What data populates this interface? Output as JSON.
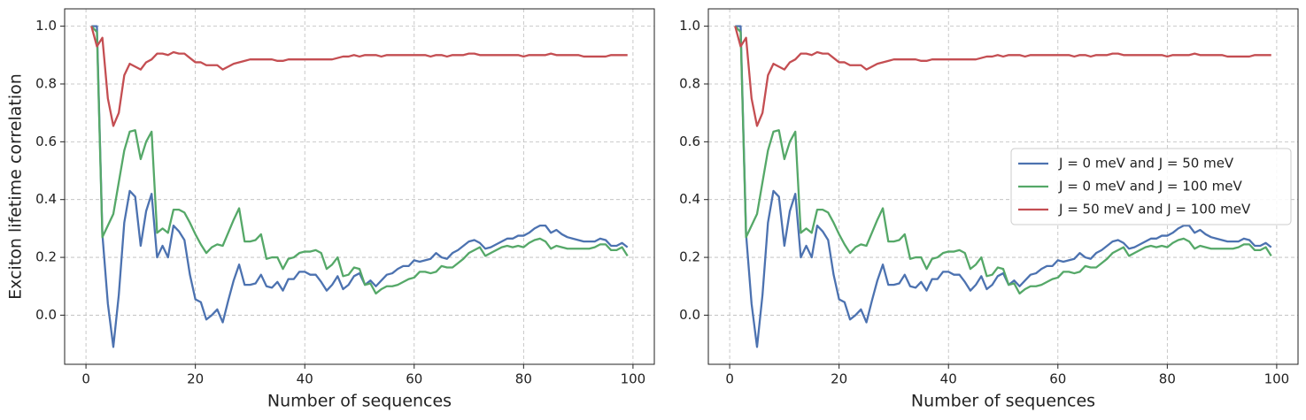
{
  "chart_data": [
    {
      "type": "line",
      "xlabel": "Number of sequences",
      "ylabel": "Exciton lifetime correlation",
      "x": [
        1,
        2,
        3,
        4,
        5,
        6,
        7,
        8,
        9,
        10,
        11,
        12,
        13,
        14,
        15,
        16,
        17,
        18,
        19,
        20,
        21,
        22,
        23,
        24,
        25,
        26,
        27,
        28,
        29,
        30,
        31,
        32,
        33,
        34,
        35,
        36,
        37,
        38,
        39,
        40,
        41,
        42,
        43,
        44,
        45,
        46,
        47,
        48,
        49,
        50,
        51,
        52,
        53,
        54,
        55,
        56,
        57,
        58,
        59,
        60,
        61,
        62,
        63,
        64,
        65,
        66,
        67,
        68,
        69,
        70,
        71,
        72,
        73,
        74,
        75,
        76,
        77,
        78,
        79,
        80,
        81,
        82,
        83,
        84,
        85,
        86,
        87,
        88,
        89,
        90,
        91,
        92,
        93,
        94,
        95,
        96,
        97,
        98,
        99
      ],
      "series": [
        {
          "color": "#4c72b0",
          "values": [
            1.0,
            1.0,
            0.28,
            0.04,
            -0.11,
            0.07,
            0.32,
            0.43,
            0.41,
            0.24,
            0.36,
            0.42,
            0.2,
            0.24,
            0.2,
            0.31,
            0.29,
            0.26,
            0.14,
            0.055,
            0.045,
            -0.015,
            0.0,
            0.02,
            -0.025,
            0.05,
            0.12,
            0.175,
            0.105,
            0.105,
            0.11,
            0.14,
            0.1,
            0.095,
            0.115,
            0.085,
            0.125,
            0.125,
            0.15,
            0.15,
            0.14,
            0.14,
            0.115,
            0.085,
            0.105,
            0.135,
            0.09,
            0.105,
            0.135,
            0.145,
            0.105,
            0.12,
            0.1,
            0.12,
            0.14,
            0.145,
            0.16,
            0.17,
            0.17,
            0.19,
            0.185,
            0.19,
            0.195,
            0.215,
            0.2,
            0.195,
            0.215,
            0.225,
            0.24,
            0.255,
            0.26,
            0.25,
            0.23,
            0.235,
            0.245,
            0.255,
            0.265,
            0.265,
            0.275,
            0.275,
            0.285,
            0.3,
            0.31,
            0.31,
            0.285,
            0.295,
            0.28,
            0.27,
            0.265,
            0.26,
            0.255,
            0.255,
            0.255,
            0.265,
            0.26,
            0.24,
            0.24,
            0.25,
            0.235
          ]
        },
        {
          "color": "#55a868",
          "values": [
            1.0,
            0.98,
            0.27,
            0.31,
            0.35,
            0.46,
            0.57,
            0.635,
            0.64,
            0.54,
            0.6,
            0.635,
            0.285,
            0.3,
            0.285,
            0.365,
            0.365,
            0.355,
            0.32,
            0.28,
            0.245,
            0.215,
            0.235,
            0.245,
            0.24,
            0.285,
            0.33,
            0.37,
            0.255,
            0.255,
            0.26,
            0.28,
            0.195,
            0.2,
            0.2,
            0.16,
            0.195,
            0.2,
            0.215,
            0.22,
            0.22,
            0.225,
            0.215,
            0.16,
            0.175,
            0.2,
            0.135,
            0.14,
            0.165,
            0.16,
            0.105,
            0.11,
            0.075,
            0.09,
            0.1,
            0.1,
            0.105,
            0.115,
            0.125,
            0.13,
            0.15,
            0.15,
            0.145,
            0.15,
            0.17,
            0.165,
            0.165,
            0.18,
            0.195,
            0.215,
            0.225,
            0.235,
            0.205,
            0.215,
            0.225,
            0.235,
            0.24,
            0.235,
            0.24,
            0.235,
            0.25,
            0.26,
            0.265,
            0.255,
            0.23,
            0.24,
            0.235,
            0.23,
            0.23,
            0.23,
            0.23,
            0.23,
            0.235,
            0.245,
            0.245,
            0.225,
            0.225,
            0.235,
            0.205
          ]
        },
        {
          "color": "#c44e52",
          "values": [
            1.0,
            0.93,
            0.96,
            0.75,
            0.655,
            0.7,
            0.83,
            0.87,
            0.86,
            0.85,
            0.875,
            0.885,
            0.905,
            0.905,
            0.9,
            0.91,
            0.905,
            0.905,
            0.89,
            0.875,
            0.875,
            0.865,
            0.865,
            0.865,
            0.85,
            0.86,
            0.87,
            0.875,
            0.88,
            0.885,
            0.885,
            0.885,
            0.885,
            0.885,
            0.88,
            0.88,
            0.885,
            0.885,
            0.885,
            0.885,
            0.885,
            0.885,
            0.885,
            0.885,
            0.885,
            0.89,
            0.895,
            0.895,
            0.9,
            0.895,
            0.9,
            0.9,
            0.9,
            0.895,
            0.9,
            0.9,
            0.9,
            0.9,
            0.9,
            0.9,
            0.9,
            0.9,
            0.895,
            0.9,
            0.9,
            0.895,
            0.9,
            0.9,
            0.9,
            0.905,
            0.905,
            0.9,
            0.9,
            0.9,
            0.9,
            0.9,
            0.9,
            0.9,
            0.9,
            0.895,
            0.9,
            0.9,
            0.9,
            0.9,
            0.905,
            0.9,
            0.9,
            0.9,
            0.9,
            0.9,
            0.895,
            0.895,
            0.895,
            0.895,
            0.895,
            0.9,
            0.9,
            0.9,
            0.9
          ]
        }
      ],
      "xlim": [
        -3.9,
        103.9
      ],
      "ylim": [
        -0.17,
        1.06
      ],
      "xticks": [
        0,
        20,
        40,
        60,
        80,
        100
      ],
      "yticks": [
        {
          "value": 0,
          "label": "0.0"
        },
        0.2,
        0.4,
        0.6,
        0.8,
        {
          "value": 1,
          "label": "1.0"
        }
      ],
      "grid": true
    },
    {
      "type": "line",
      "xlabel": "Number of sequences",
      "x": [
        1,
        2,
        3,
        4,
        5,
        6,
        7,
        8,
        9,
        10,
        11,
        12,
        13,
        14,
        15,
        16,
        17,
        18,
        19,
        20,
        21,
        22,
        23,
        24,
        25,
        26,
        27,
        28,
        29,
        30,
        31,
        32,
        33,
        34,
        35,
        36,
        37,
        38,
        39,
        40,
        41,
        42,
        43,
        44,
        45,
        46,
        47,
        48,
        49,
        50,
        51,
        52,
        53,
        54,
        55,
        56,
        57,
        58,
        59,
        60,
        61,
        62,
        63,
        64,
        65,
        66,
        67,
        68,
        69,
        70,
        71,
        72,
        73,
        74,
        75,
        76,
        77,
        78,
        79,
        80,
        81,
        82,
        83,
        84,
        85,
        86,
        87,
        88,
        89,
        90,
        91,
        92,
        93,
        94,
        95,
        96,
        97,
        98,
        99
      ],
      "series": [
        {
          "name": "J = 0 meV and J = 50 meV",
          "color": "#4c72b0",
          "values": [
            1.0,
            1.0,
            0.28,
            0.04,
            -0.11,
            0.07,
            0.32,
            0.43,
            0.41,
            0.24,
            0.36,
            0.42,
            0.2,
            0.24,
            0.2,
            0.31,
            0.29,
            0.26,
            0.14,
            0.055,
            0.045,
            -0.015,
            0.0,
            0.02,
            -0.025,
            0.05,
            0.12,
            0.175,
            0.105,
            0.105,
            0.11,
            0.14,
            0.1,
            0.095,
            0.115,
            0.085,
            0.125,
            0.125,
            0.15,
            0.15,
            0.14,
            0.14,
            0.115,
            0.085,
            0.105,
            0.135,
            0.09,
            0.105,
            0.135,
            0.145,
            0.105,
            0.12,
            0.1,
            0.12,
            0.14,
            0.145,
            0.16,
            0.17,
            0.17,
            0.19,
            0.185,
            0.19,
            0.195,
            0.215,
            0.2,
            0.195,
            0.215,
            0.225,
            0.24,
            0.255,
            0.26,
            0.25,
            0.23,
            0.235,
            0.245,
            0.255,
            0.265,
            0.265,
            0.275,
            0.275,
            0.285,
            0.3,
            0.31,
            0.31,
            0.285,
            0.295,
            0.28,
            0.27,
            0.265,
            0.26,
            0.255,
            0.255,
            0.255,
            0.265,
            0.26,
            0.24,
            0.24,
            0.25,
            0.235
          ]
        },
        {
          "name": "J = 0 meV and J = 100 meV",
          "color": "#55a868",
          "values": [
            1.0,
            0.98,
            0.27,
            0.31,
            0.35,
            0.46,
            0.57,
            0.635,
            0.64,
            0.54,
            0.6,
            0.635,
            0.285,
            0.3,
            0.285,
            0.365,
            0.365,
            0.355,
            0.32,
            0.28,
            0.245,
            0.215,
            0.235,
            0.245,
            0.24,
            0.285,
            0.33,
            0.37,
            0.255,
            0.255,
            0.26,
            0.28,
            0.195,
            0.2,
            0.2,
            0.16,
            0.195,
            0.2,
            0.215,
            0.22,
            0.22,
            0.225,
            0.215,
            0.16,
            0.175,
            0.2,
            0.135,
            0.14,
            0.165,
            0.16,
            0.105,
            0.11,
            0.075,
            0.09,
            0.1,
            0.1,
            0.105,
            0.115,
            0.125,
            0.13,
            0.15,
            0.15,
            0.145,
            0.15,
            0.17,
            0.165,
            0.165,
            0.18,
            0.195,
            0.215,
            0.225,
            0.235,
            0.205,
            0.215,
            0.225,
            0.235,
            0.24,
            0.235,
            0.24,
            0.235,
            0.25,
            0.26,
            0.265,
            0.255,
            0.23,
            0.24,
            0.235,
            0.23,
            0.23,
            0.23,
            0.23,
            0.23,
            0.235,
            0.245,
            0.245,
            0.225,
            0.225,
            0.235,
            0.205
          ]
        },
        {
          "name": "J = 50 meV and J = 100 meV",
          "color": "#c44e52",
          "values": [
            1.0,
            0.93,
            0.96,
            0.75,
            0.655,
            0.7,
            0.83,
            0.87,
            0.86,
            0.85,
            0.875,
            0.885,
            0.905,
            0.905,
            0.9,
            0.91,
            0.905,
            0.905,
            0.89,
            0.875,
            0.875,
            0.865,
            0.865,
            0.865,
            0.85,
            0.86,
            0.87,
            0.875,
            0.88,
            0.885,
            0.885,
            0.885,
            0.885,
            0.885,
            0.88,
            0.88,
            0.885,
            0.885,
            0.885,
            0.885,
            0.885,
            0.885,
            0.885,
            0.885,
            0.885,
            0.89,
            0.895,
            0.895,
            0.9,
            0.895,
            0.9,
            0.9,
            0.9,
            0.895,
            0.9,
            0.9,
            0.9,
            0.9,
            0.9,
            0.9,
            0.9,
            0.9,
            0.895,
            0.9,
            0.9,
            0.895,
            0.9,
            0.9,
            0.9,
            0.905,
            0.905,
            0.9,
            0.9,
            0.9,
            0.9,
            0.9,
            0.9,
            0.9,
            0.9,
            0.895,
            0.9,
            0.9,
            0.9,
            0.9,
            0.905,
            0.9,
            0.9,
            0.9,
            0.9,
            0.9,
            0.895,
            0.895,
            0.895,
            0.895,
            0.895,
            0.9,
            0.9,
            0.9,
            0.9
          ]
        }
      ],
      "xlim": [
        -3.9,
        103.9
      ],
      "ylim": [
        -0.17,
        1.06
      ],
      "xticks": [
        0,
        20,
        40,
        60,
        80,
        100
      ],
      "yticks": [
        {
          "value": 0,
          "label": "0.0"
        },
        0.2,
        0.4,
        0.6,
        0.8,
        {
          "value": 1,
          "label": "1.0"
        }
      ],
      "grid": true,
      "legend": "center right"
    }
  ]
}
